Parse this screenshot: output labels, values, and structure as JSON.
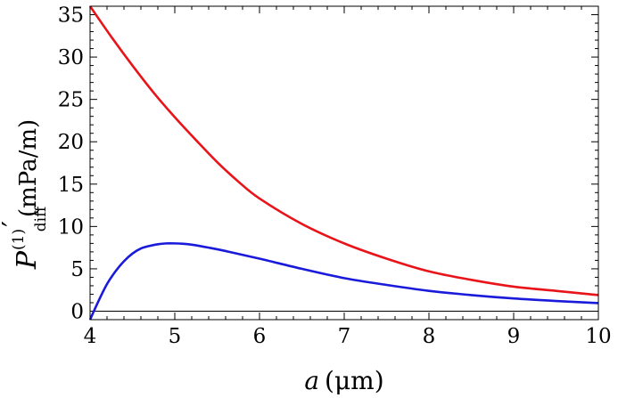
{
  "chart_data": {
    "type": "line",
    "title": "",
    "xlabel": {
      "var": "a",
      "unit": "(μm)"
    },
    "ylabel": {
      "symbol": "P",
      "superscript": "(1)",
      "subscript": "diff",
      "prime": "′",
      "unit": "(mPa/m)"
    },
    "xlim": [
      4,
      10
    ],
    "ylim": [
      -1,
      36
    ],
    "xticks": [
      4,
      5,
      6,
      7,
      8,
      9,
      10
    ],
    "yticks": [
      0,
      5,
      10,
      15,
      20,
      25,
      30,
      35
    ],
    "grid": false,
    "zero_line": true,
    "series": [
      {
        "color": "#e8141a",
        "x": [
          4.0,
          4.25,
          4.5,
          4.75,
          5.0,
          5.25,
          5.5,
          5.75,
          6.0,
          6.5,
          7.0,
          7.5,
          8.0,
          8.5,
          9.0,
          9.5,
          10.0
        ],
        "values": [
          36.0,
          32.4,
          29.0,
          25.8,
          22.9,
          20.2,
          17.6,
          15.3,
          13.3,
          10.3,
          8.0,
          6.2,
          4.7,
          3.7,
          2.9,
          2.4,
          1.9
        ]
      },
      {
        "color": "#1a1adb",
        "x": [
          4.0,
          4.1,
          4.2,
          4.3,
          4.4,
          4.5,
          4.6,
          4.7,
          4.8,
          4.9,
          5.0,
          5.1,
          5.2,
          5.4,
          5.6,
          6.0,
          6.5,
          7.0,
          7.5,
          8.0,
          8.5,
          9.0,
          9.5,
          10.0
        ],
        "values": [
          -1.0,
          1.2,
          3.2,
          4.7,
          5.9,
          6.8,
          7.4,
          7.7,
          7.9,
          8.0,
          8.0,
          7.95,
          7.85,
          7.5,
          7.1,
          6.2,
          5.0,
          3.9,
          3.1,
          2.4,
          1.9,
          1.5,
          1.2,
          0.95
        ]
      }
    ]
  }
}
